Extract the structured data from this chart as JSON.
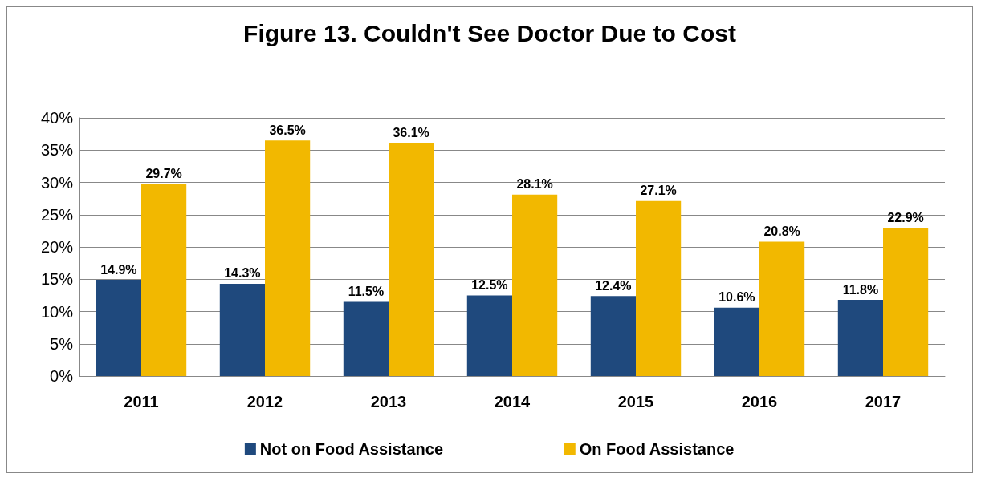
{
  "chart_data": {
    "type": "bar",
    "title": "Figure 13. Couldn't See Doctor Due to Cost",
    "categories": [
      "2011",
      "2012",
      "2013",
      "2014",
      "2015",
      "2016",
      "2017"
    ],
    "series": [
      {
        "name": "Not on Food Assistance",
        "color": "#1f497d",
        "values": [
          14.9,
          14.3,
          11.5,
          12.5,
          12.4,
          10.6,
          11.8
        ],
        "value_labels": [
          "14.9%",
          "14.3%",
          "11.5%",
          "12.5%",
          "12.4%",
          "10.6%",
          "11.8%"
        ]
      },
      {
        "name": "On Food Assistance",
        "color": "#f2b800",
        "values": [
          29.7,
          36.5,
          36.1,
          28.1,
          27.1,
          20.8,
          22.9
        ],
        "value_labels": [
          "29.7%",
          "36.5%",
          "36.1%",
          "28.1%",
          "27.1%",
          "20.8%",
          "22.9%"
        ]
      }
    ],
    "ylim": [
      0,
      40
    ],
    "yticks": [
      {
        "value": 0,
        "label": "0%"
      },
      {
        "value": 5,
        "label": "5%"
      },
      {
        "value": 10,
        "label": "10%"
      },
      {
        "value": 15,
        "label": "15%"
      },
      {
        "value": 20,
        "label": "20%"
      },
      {
        "value": 25,
        "label": "25%"
      },
      {
        "value": 30,
        "label": "30%"
      },
      {
        "value": 35,
        "label": "35%"
      },
      {
        "value": 40,
        "label": "40%"
      }
    ],
    "grid": "y",
    "legend": "bottom"
  }
}
